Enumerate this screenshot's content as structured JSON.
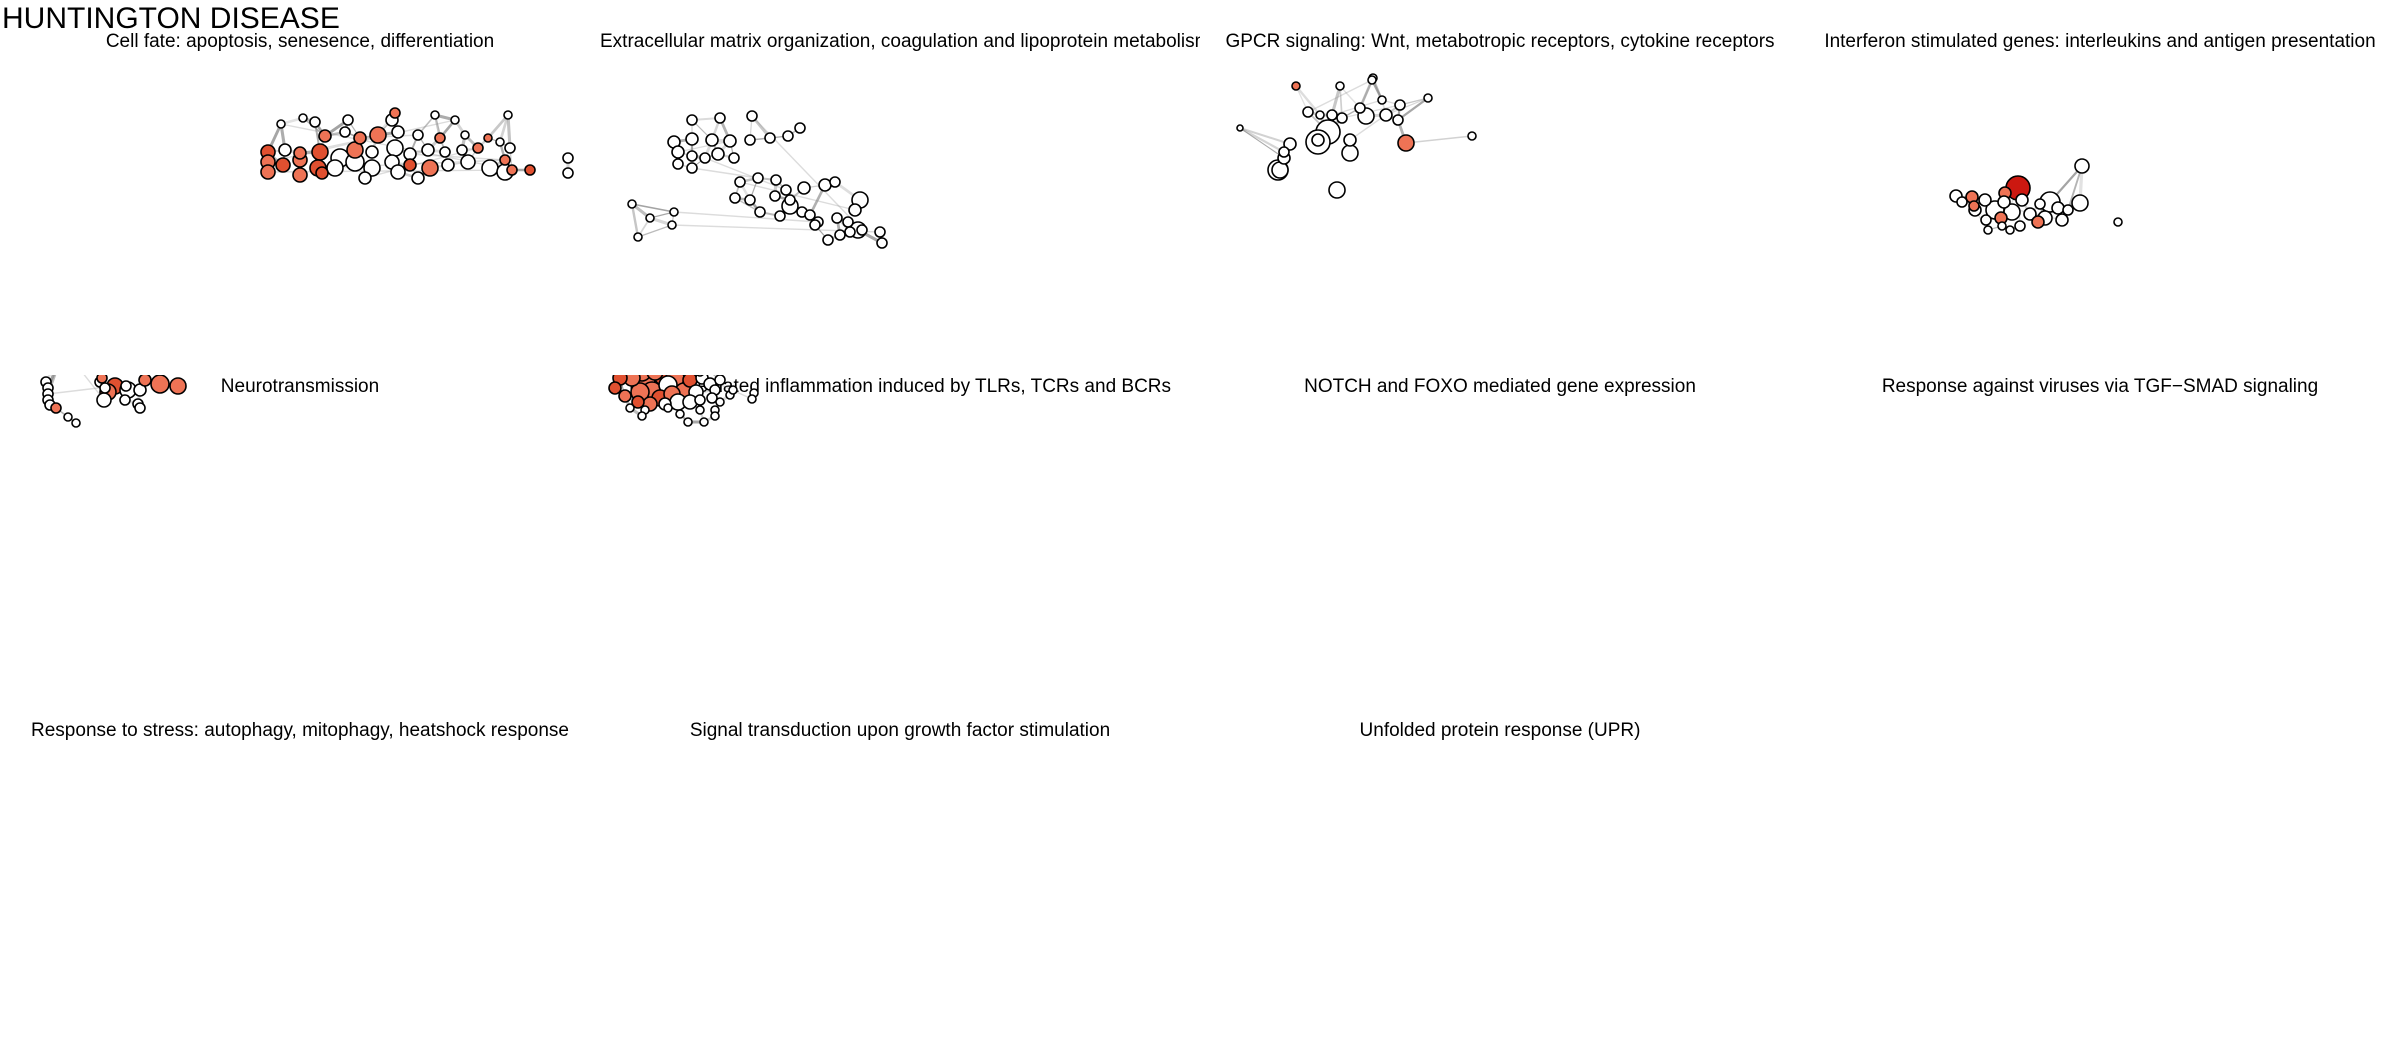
{
  "title": "HUNTINGTON DISEASE",
  "colors": {
    "node_default": "#ffffff",
    "node_light": "#ee7355",
    "node_mid": "#e05030",
    "node_dark": "#cc1810",
    "node_outline": "#000000",
    "edge": "#8a8a8a",
    "background": "#ffffff"
  },
  "panels": [
    {
      "id": "cell-fate",
      "title": "Cell fate: apoptosis, senesence, differentiation"
    },
    {
      "id": "ecm",
      "title": "Extracellular matrix organization, coagulation and lipoprotein metabolism"
    },
    {
      "id": "gpcr",
      "title": "GPCR signaling: Wnt, metabotropic receptors, cytokine receptors"
    },
    {
      "id": "interferon",
      "title": "Interferon stimulated genes: interleukins and antigen presentation"
    },
    {
      "id": "neurotransmission",
      "title": "Neurotransmission"
    },
    {
      "id": "nfkb",
      "title": "NFkB mediated inflammation induced by TLRs, TCRs and BCRs"
    },
    {
      "id": "notch",
      "title": "NOTCH and FOXO mediated gene expression"
    },
    {
      "id": "viruses",
      "title": "Response against viruses via TGF−SMAD signaling"
    },
    {
      "id": "stress",
      "title": "Response to stress: autophagy, mitophagy, heatshock response"
    },
    {
      "id": "signal-transduction",
      "title": "Signal transduction upon growth factor stimulation"
    },
    {
      "id": "upr",
      "title": "Unfolded protein response (UPR)"
    }
  ]
}
